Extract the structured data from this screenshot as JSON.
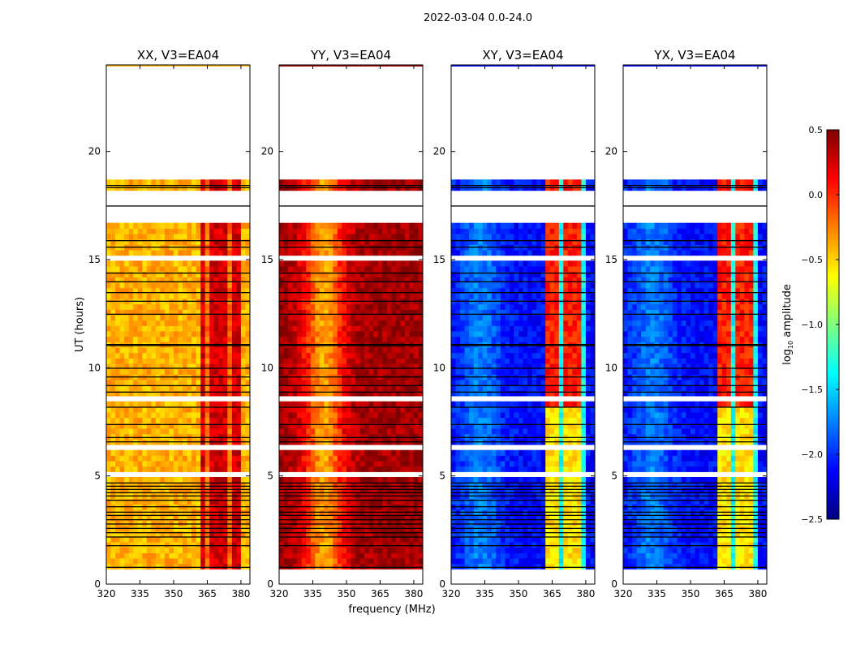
{
  "chart_data": {
    "type": "heatmap",
    "title": "2022-03-04 0.0-24.0",
    "xlabel": "frequency (MHz)",
    "ylabel": "UT (hours)",
    "xlim": [
      320,
      384
    ],
    "ylim": [
      0,
      24
    ],
    "xticks": [
      "320",
      "335",
      "350",
      "365",
      "380"
    ],
    "yticks": [
      "0",
      "5",
      "10",
      "15",
      "20"
    ],
    "colorbar": {
      "label_main": "log",
      "label_sub": "10",
      "label_rest": " amplitude",
      "range": [
        -2.5,
        0.5
      ],
      "ticks": [
        "0.5",
        "0.0",
        "−0.5",
        "−1.0",
        "−1.5",
        "−2.0",
        "−2.5"
      ],
      "colormap": "jet"
    },
    "data_hours": [
      0.7,
      18.5
    ],
    "flagged_hours": [
      [
        16.7,
        18.2
      ],
      [
        15.05,
        15.2
      ],
      [
        8.55,
        8.65
      ],
      [
        6.25,
        6.4
      ],
      [
        5.05,
        5.2
      ]
    ],
    "black_line_hours": [
      18.35,
      18.45,
      17.5,
      11.05,
      11.1,
      10.0,
      9.6,
      9.2,
      8.9,
      8.2,
      7.4,
      6.8,
      6.6,
      4.7,
      4.55,
      4.4,
      4.25,
      4.1,
      3.9,
      3.6,
      3.35,
      3.2,
      3.0,
      2.8,
      2.6,
      2.4,
      2.2,
      1.8,
      0.8,
      12.5,
      13.1,
      13.5,
      14.0,
      14.4,
      15.6,
      15.9
    ],
    "panels": [
      {
        "title": "XX, V3=EA04",
        "base": -0.4,
        "bump_center": 336,
        "bump_delta": 0.0,
        "band": [
          363,
          380
        ],
        "band_level": 0.25,
        "band_low_hours": [
          0,
          0
        ],
        "band_low_level": 0.25,
        "stripe_level": -0.2
      },
      {
        "title": "YY, V3=EA04",
        "base": 0.4,
        "bump_center": 340,
        "bump_delta": -0.75,
        "band": [
          363,
          380
        ],
        "band_level": 0.4,
        "band_low_hours": [
          0,
          0
        ],
        "band_low_level": 0.4,
        "stripe_level": 0.4
      },
      {
        "title": "XY, V3=EA04",
        "base": -2.1,
        "bump_center": 333,
        "bump_delta": 0.35,
        "band": [
          362,
          380
        ],
        "band_level": 0.05,
        "band_low_hours": [
          0.7,
          8.0
        ],
        "band_low_level": -0.55,
        "stripe_level": -1.35
      },
      {
        "title": "YX, V3=EA04",
        "base": -2.1,
        "bump_center": 333,
        "bump_delta": 0.35,
        "band": [
          362,
          380
        ],
        "band_level": 0.05,
        "band_low_hours": [
          0.7,
          8.0
        ],
        "band_low_level": -0.55,
        "stripe_level": -1.35
      }
    ]
  }
}
